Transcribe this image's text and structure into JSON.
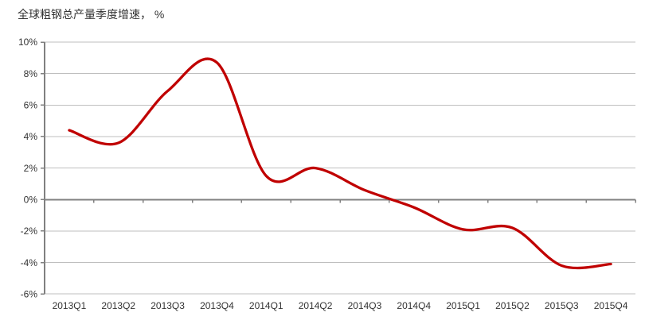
{
  "chart": {
    "title": "全球粗钢总产量季度增速， %"
  },
  "chart_data": {
    "type": "line",
    "title": "全球粗钢总产量季度增速， %",
    "categories": [
      "2013Q1",
      "2013Q2",
      "2013Q3",
      "2013Q4",
      "2014Q1",
      "2014Q2",
      "2014Q3",
      "2014Q4",
      "2015Q1",
      "2015Q2",
      "2015Q3",
      "2015Q4"
    ],
    "series": [
      {
        "name": "全球粗钢总产量季度增速",
        "values": [
          4.4,
          3.6,
          6.9,
          8.7,
          1.5,
          2.0,
          0.6,
          -0.5,
          -1.9,
          -1.8,
          -4.2,
          -4.1
        ]
      }
    ],
    "xlabel": "",
    "ylabel": "",
    "ylim": [
      -6,
      10
    ],
    "ytick_step": 2,
    "ytick_labels": [
      "10%",
      "8%",
      "6%",
      "4%",
      "2%",
      "0%",
      "-2%",
      "-4%",
      "-6%"
    ],
    "grid": true,
    "legend": "none",
    "smooth": true,
    "colors": {
      "line": "#C00000",
      "gridline": "#BFBFBF",
      "axis": "#808080",
      "label": "#333333",
      "background": "#FFFFFF"
    }
  }
}
